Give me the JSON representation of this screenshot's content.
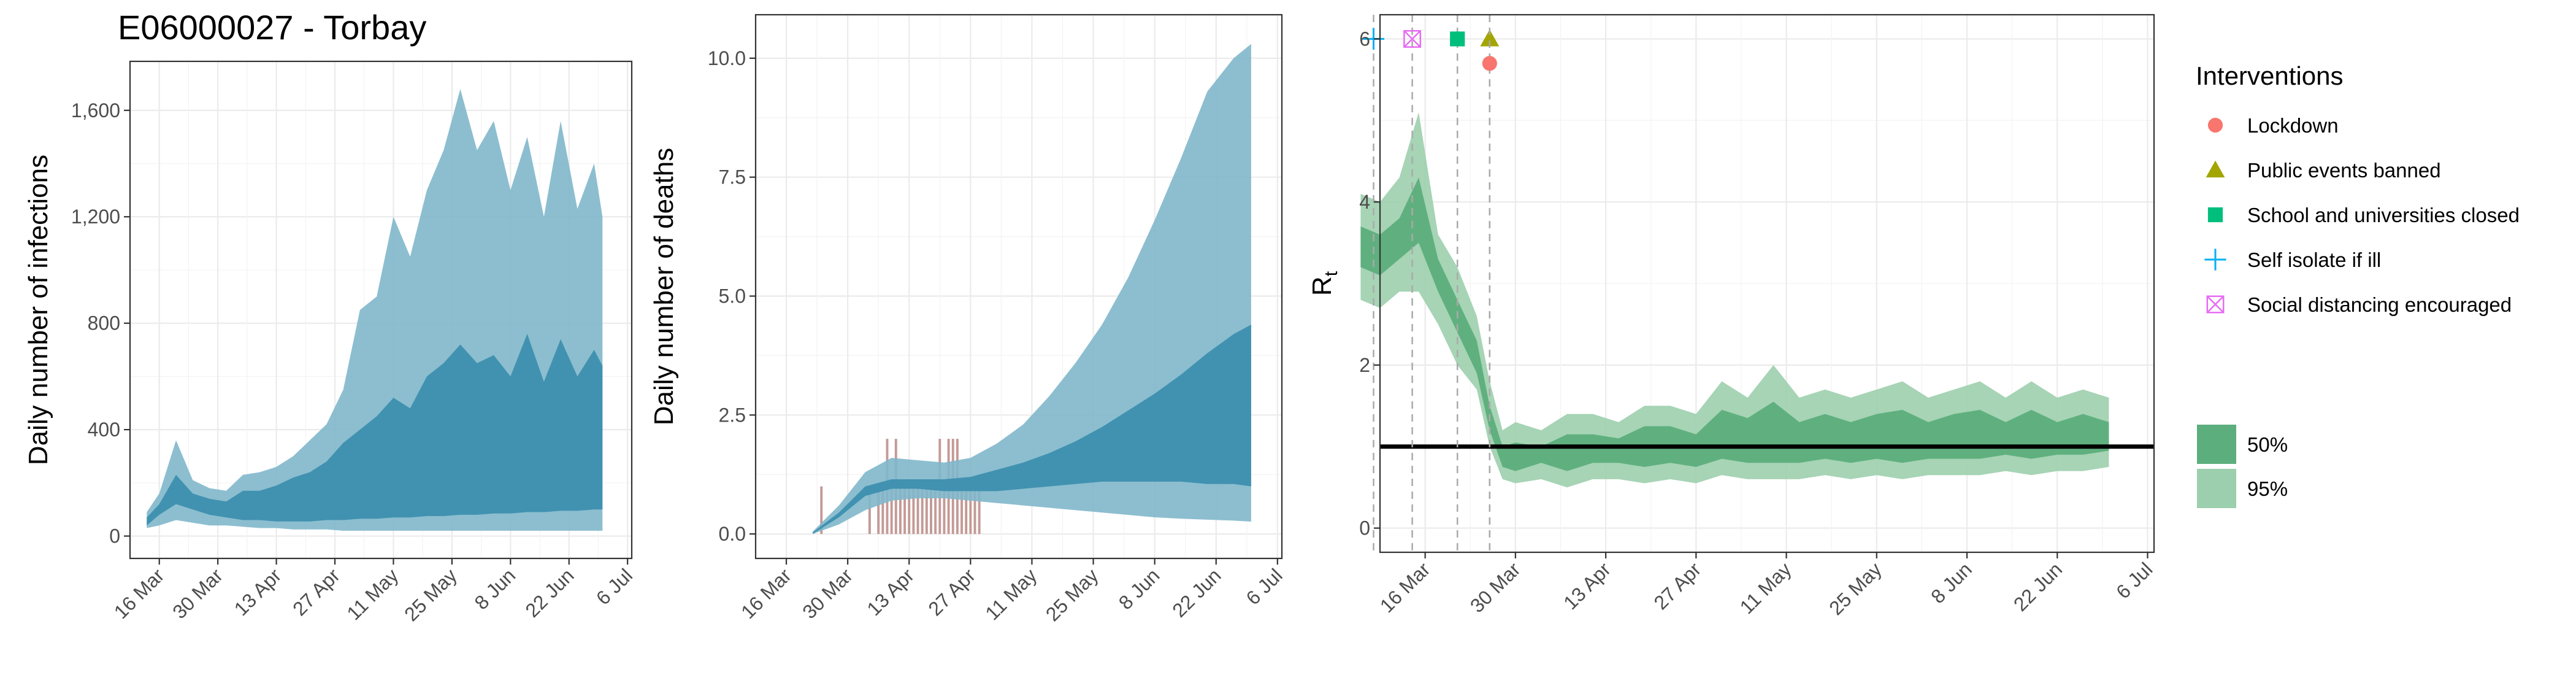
{
  "title": "E06000027 - Torbay",
  "colors": {
    "infections_95": "#7fb7cb",
    "infections_50": "#3d8fae",
    "deaths_bar": "#c49a96",
    "rt_95": "#9ccfad",
    "rt_50": "#5cae7c",
    "lockdown": "#f8766d",
    "public_events": "#a3a500",
    "school": "#00bf7d",
    "self_isolate": "#00b0f6",
    "social_distancing": "#e76bf3"
  },
  "x_tick_labels": [
    "16 Mar",
    "30 Mar",
    "13 Apr",
    "27 Apr",
    "11 May",
    "25 May",
    "8 Jun",
    "22 Jun",
    "6 Jul"
  ],
  "chart_data": [
    {
      "type": "area",
      "ylabel": "Daily number of infections",
      "y_ticks": [
        "0",
        "400",
        "800",
        "1,200",
        "1,600"
      ],
      "y_tick_values": [
        0,
        400,
        800,
        1200,
        1600
      ],
      "ylim": [
        0,
        1700
      ],
      "xlim_days_from_16_Mar": [
        -7,
        113
      ],
      "x_days_from_16_Mar": [
        -3,
        0,
        4,
        8,
        12,
        16,
        20,
        24,
        28,
        32,
        36,
        40,
        44,
        48,
        52,
        56,
        60,
        64,
        68,
        72,
        76,
        80,
        84,
        88,
        92,
        96,
        100,
        104,
        106
      ],
      "series": [
        {
          "name": "95%",
          "lower": [
            30,
            40,
            60,
            50,
            40,
            40,
            35,
            30,
            30,
            25,
            25,
            25,
            20,
            20,
            20,
            20,
            20,
            20,
            20,
            20,
            20,
            20,
            20,
            20,
            20,
            20,
            20,
            20,
            20
          ],
          "upper": [
            90,
            160,
            360,
            210,
            180,
            170,
            230,
            240,
            260,
            300,
            360,
            420,
            550,
            850,
            900,
            1200,
            1050,
            1300,
            1450,
            1680,
            1450,
            1560,
            1300,
            1500,
            1200,
            1560,
            1230,
            1400,
            1200
          ]
        },
        {
          "name": "50%",
          "lower": [
            40,
            80,
            120,
            100,
            80,
            70,
            60,
            60,
            55,
            55,
            55,
            60,
            60,
            65,
            65,
            70,
            70,
            75,
            75,
            80,
            80,
            85,
            85,
            90,
            90,
            95,
            95,
            100,
            100
          ],
          "upper": [
            70,
            120,
            230,
            160,
            140,
            130,
            170,
            170,
            190,
            220,
            240,
            280,
            350,
            400,
            450,
            520,
            480,
            600,
            650,
            720,
            650,
            680,
            600,
            760,
            580,
            740,
            600,
            700,
            640
          ]
        }
      ]
    },
    {
      "type": "bar",
      "ylabel": "Daily number of deaths",
      "y_ticks": [
        "0.0",
        "2.5",
        "5.0",
        "7.5",
        "10.0"
      ],
      "y_tick_values": [
        0,
        2.5,
        5,
        7.5,
        10
      ],
      "ylim": [
        0,
        10.4
      ],
      "xlim_days_from_16_Mar": [
        -7,
        113
      ],
      "bars": {
        "x_days_from_16_Mar": [
          8,
          19,
          21,
          22,
          23,
          24,
          25,
          26,
          27,
          28,
          29,
          30,
          31,
          32,
          33,
          34,
          35,
          36,
          37,
          38,
          39,
          40,
          41,
          42,
          43,
          44
        ],
        "values": [
          1,
          1,
          1,
          1,
          2,
          1,
          2,
          1,
          1,
          1,
          1,
          1,
          1,
          1,
          1,
          1,
          2,
          1,
          2,
          2,
          2,
          1,
          1,
          1,
          1,
          1
        ]
      },
      "x_days_from_16_Mar": [
        6,
        12,
        18,
        24,
        30,
        36,
        42,
        48,
        54,
        60,
        66,
        72,
        78,
        84,
        90,
        96,
        102,
        106
      ],
      "series": [
        {
          "name": "95%",
          "lower": [
            0,
            0.2,
            0.5,
            0.7,
            0.75,
            0.75,
            0.7,
            0.65,
            0.6,
            0.55,
            0.5,
            0.45,
            0.4,
            0.35,
            0.32,
            0.3,
            0.28,
            0.26
          ],
          "upper": [
            0.05,
            0.6,
            1.3,
            1.6,
            1.55,
            1.5,
            1.6,
            1.9,
            2.3,
            2.9,
            3.6,
            4.4,
            5.4,
            6.6,
            7.9,
            9.3,
            10.0,
            10.3
          ]
        },
        {
          "name": "50%",
          "lower": [
            0,
            0.35,
            0.8,
            0.95,
            0.95,
            0.9,
            0.9,
            0.9,
            0.95,
            1.0,
            1.05,
            1.1,
            1.1,
            1.1,
            1.1,
            1.05,
            1.05,
            1.0
          ],
          "upper": [
            0.03,
            0.45,
            1.0,
            1.15,
            1.15,
            1.15,
            1.2,
            1.35,
            1.5,
            1.7,
            1.95,
            2.25,
            2.6,
            2.95,
            3.35,
            3.8,
            4.2,
            4.4
          ]
        }
      ]
    },
    {
      "type": "area",
      "ylabel": "R",
      "ylabel_subscript": "t",
      "y_ticks": [
        "0",
        "2",
        "4",
        "6"
      ],
      "y_tick_values": [
        0,
        2,
        4,
        6
      ],
      "ylim": [
        0,
        6
      ],
      "xlim_days_from_16_Mar": [
        -7,
        113
      ],
      "reference_line_y": 1,
      "interventions": [
        {
          "name": "Self isolate if ill",
          "x_day": -8,
          "marker": "plus",
          "y": 6.0
        },
        {
          "name": "Social distancing encouraged",
          "x_day": -2,
          "marker": "boxed-x",
          "y": 6.0
        },
        {
          "name": "School and universities closed",
          "x_day": 5,
          "marker": "square",
          "y": 6.0
        },
        {
          "name": "Public events banned",
          "x_day": 10,
          "marker": "triangle",
          "y": 6.0
        },
        {
          "name": "Lockdown",
          "x_day": 10,
          "marker": "circle",
          "y": 5.7
        }
      ],
      "x_days_from_16_Mar": [
        -10,
        -7,
        -4,
        -1,
        2,
        5,
        8,
        10,
        12,
        14,
        18,
        22,
        26,
        30,
        34,
        38,
        42,
        46,
        50,
        54,
        58,
        62,
        66,
        70,
        74,
        78,
        82,
        86,
        90,
        94,
        98,
        102,
        106
      ],
      "series": [
        {
          "name": "95%",
          "lower": [
            2.8,
            2.7,
            2.9,
            2.9,
            2.5,
            2.0,
            1.7,
            1.0,
            0.6,
            0.55,
            0.6,
            0.5,
            0.6,
            0.6,
            0.55,
            0.6,
            0.55,
            0.65,
            0.6,
            0.6,
            0.6,
            0.65,
            0.6,
            0.65,
            0.6,
            0.65,
            0.65,
            0.65,
            0.7,
            0.65,
            0.7,
            0.7,
            0.75
          ],
          "upper": [
            4.1,
            4.0,
            4.3,
            5.1,
            3.6,
            3.2,
            2.6,
            1.8,
            1.2,
            1.3,
            1.2,
            1.4,
            1.4,
            1.3,
            1.5,
            1.5,
            1.4,
            1.8,
            1.6,
            2.0,
            1.6,
            1.7,
            1.6,
            1.7,
            1.8,
            1.6,
            1.7,
            1.8,
            1.6,
            1.8,
            1.6,
            1.7,
            1.6
          ]
        },
        {
          "name": "50%",
          "lower": [
            3.2,
            3.1,
            3.3,
            3.5,
            2.9,
            2.4,
            1.9,
            1.2,
            0.75,
            0.7,
            0.8,
            0.7,
            0.8,
            0.8,
            0.75,
            0.8,
            0.75,
            0.85,
            0.8,
            0.8,
            0.8,
            0.85,
            0.8,
            0.85,
            0.8,
            0.85,
            0.85,
            0.85,
            0.9,
            0.85,
            0.9,
            0.9,
            0.95
          ],
          "upper": [
            3.7,
            3.6,
            3.8,
            4.3,
            3.3,
            2.8,
            2.3,
            1.5,
            1.0,
            1.05,
            1.0,
            1.15,
            1.15,
            1.1,
            1.25,
            1.25,
            1.15,
            1.45,
            1.35,
            1.55,
            1.3,
            1.4,
            1.3,
            1.4,
            1.45,
            1.3,
            1.4,
            1.45,
            1.3,
            1.45,
            1.3,
            1.4,
            1.3
          ]
        }
      ]
    }
  ],
  "legend": {
    "interventions_title": "Interventions",
    "interventions": [
      {
        "label": "Lockdown",
        "marker": "circle",
        "color": "#f8766d"
      },
      {
        "label": "Public events banned",
        "marker": "triangle",
        "color": "#a3a500"
      },
      {
        "label": "School and universities closed",
        "marker": "square",
        "color": "#00bf7d"
      },
      {
        "label": "Self isolate if ill",
        "marker": "plus",
        "color": "#00b0f6"
      },
      {
        "label": "Social distancing encouraged",
        "marker": "boxed-x",
        "color": "#e76bf3"
      }
    ],
    "intervals": [
      {
        "label": "50%",
        "color": "#5cae7c"
      },
      {
        "label": "95%",
        "color": "#9ccfad"
      }
    ]
  }
}
